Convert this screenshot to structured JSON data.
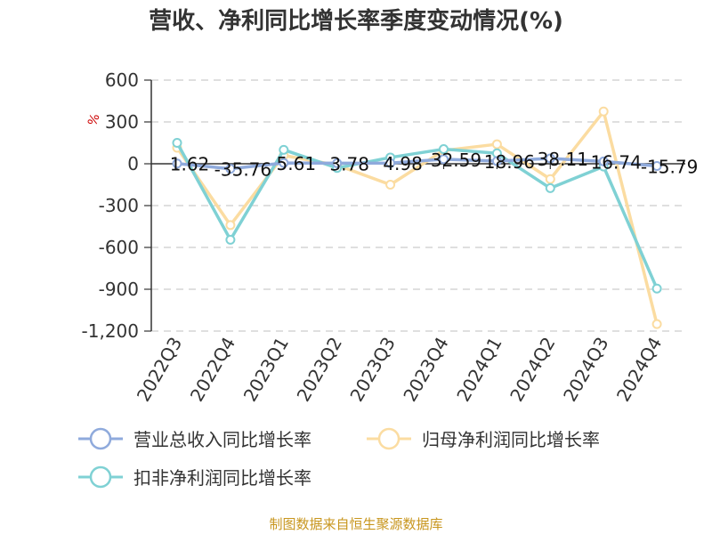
{
  "chart_data": {
    "type": "line",
    "title": "营收、净利同比增长率季度变动情况(%)",
    "ylabel": "%",
    "xlabel": "",
    "categories": [
      "2022Q3",
      "2022Q4",
      "2023Q1",
      "2023Q2",
      "2023Q3",
      "2023Q4",
      "2024Q1",
      "2024Q2",
      "2024Q3",
      "2024Q4"
    ],
    "ylim": [
      -1200,
      600
    ],
    "yticks": [
      600,
      300,
      0,
      -300,
      -600,
      -900,
      -1200
    ],
    "ytick_labels": [
      "600",
      "300",
      "0",
      "-300",
      "-600",
      "-900",
      "-1,200"
    ],
    "grid": true,
    "legend_position": "bottom",
    "series": [
      {
        "name": "营业总收入同比增长率",
        "color": "#8faadc",
        "values": [
          1.62,
          -35.76,
          5.61,
          3.78,
          4.98,
          32.59,
          18.96,
          38.11,
          16.74,
          -15.79
        ],
        "labels": [
          "1.62",
          "-35.76",
          "5.61",
          "3.78",
          "4.98",
          "32.59",
          "18.96",
          "38.11",
          "16.74",
          "-15.79"
        ]
      },
      {
        "name": "归母净利润同比增长率",
        "color": "#fbdca1",
        "values": [
          115,
          -440,
          60,
          -10,
          -150,
          95,
          140,
          -110,
          375,
          -1150
        ]
      },
      {
        "name": "扣非净利润同比增长率",
        "color": "#7fd1d4",
        "values": [
          150,
          -545,
          100,
          -30,
          45,
          105,
          75,
          -175,
          -20,
          -895
        ]
      }
    ],
    "source": "制图数据来自恒生聚源数据库"
  }
}
